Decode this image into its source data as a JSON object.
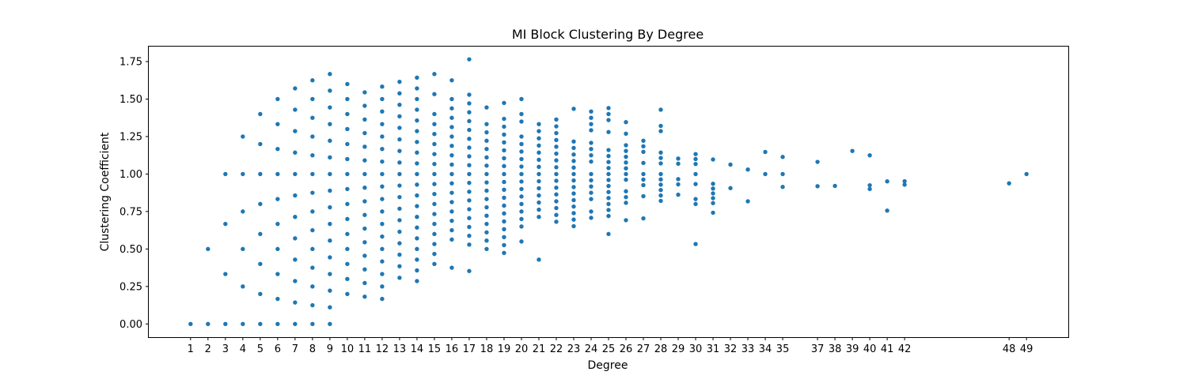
{
  "chart_data": {
    "type": "scatter",
    "title": "MI Block Clustering By Degree",
    "xlabel": "Degree",
    "ylabel": "Clustering Coefficient",
    "xlim": [
      -1.4,
      51.4
    ],
    "ylim": [
      -0.088,
      1.85
    ],
    "x_ticks": [
      1,
      2,
      3,
      4,
      5,
      6,
      7,
      8,
      9,
      10,
      11,
      12,
      13,
      14,
      15,
      16,
      17,
      18,
      19,
      20,
      21,
      22,
      23,
      24,
      25,
      26,
      27,
      28,
      29,
      30,
      31,
      32,
      33,
      34,
      35,
      37,
      38,
      39,
      40,
      41,
      42,
      48,
      49
    ],
    "y_ticks": [
      "0.00",
      "0.25",
      "0.50",
      "0.75",
      "1.00",
      "1.25",
      "1.50",
      "1.75"
    ],
    "grid": false,
    "legend": "none",
    "marker_color": "#1f77b4",
    "points": [
      {
        "x": 1,
        "y": [
          0.0
        ]
      },
      {
        "x": 2,
        "y": [
          0.0,
          0.5
        ]
      },
      {
        "x": 3,
        "y": [
          0.0,
          0.333,
          0.667,
          1.0
        ]
      },
      {
        "x": 4,
        "y": [
          0.0,
          0.25,
          0.5,
          0.75,
          1.0,
          1.25
        ]
      },
      {
        "x": 5,
        "y": [
          0.0,
          0.2,
          0.4,
          0.6,
          0.8,
          1.0,
          1.2,
          1.4
        ]
      },
      {
        "x": 6,
        "y": [
          0.0,
          0.167,
          0.333,
          0.5,
          0.667,
          0.833,
          1.0,
          1.167,
          1.333,
          1.5
        ]
      },
      {
        "x": 7,
        "y": [
          0.0,
          0.143,
          0.286,
          0.429,
          0.571,
          0.714,
          0.857,
          1.0,
          1.143,
          1.286,
          1.429,
          1.571
        ]
      },
      {
        "x": 8,
        "y": [
          0.0,
          0.125,
          0.25,
          0.375,
          0.5,
          0.625,
          0.75,
          0.875,
          1.0,
          1.125,
          1.25,
          1.375,
          1.5,
          1.625
        ]
      },
      {
        "x": 9,
        "y": [
          0.0,
          0.111,
          0.222,
          0.333,
          0.444,
          0.556,
          0.667,
          0.778,
          0.889,
          1.0,
          1.111,
          1.222,
          1.333,
          1.444,
          1.556,
          1.667
        ]
      },
      {
        "x": 10,
        "y": [
          0.2,
          0.3,
          0.4,
          0.5,
          0.6,
          0.7,
          0.8,
          0.9,
          1.0,
          1.1,
          1.2,
          1.3,
          1.4,
          1.5,
          1.6
        ]
      },
      {
        "x": 11,
        "y": [
          0.182,
          0.273,
          0.364,
          0.455,
          0.545,
          0.636,
          0.727,
          0.818,
          0.909,
          1.0,
          1.091,
          1.182,
          1.273,
          1.364,
          1.455,
          1.545
        ]
      },
      {
        "x": 12,
        "y": [
          0.167,
          0.25,
          0.333,
          0.417,
          0.5,
          0.583,
          0.667,
          0.75,
          0.833,
          0.917,
          1.0,
          1.083,
          1.167,
          1.25,
          1.333,
          1.417,
          1.5,
          1.583
        ]
      },
      {
        "x": 13,
        "y": [
          0.308,
          0.385,
          0.462,
          0.538,
          0.615,
          0.692,
          0.769,
          0.846,
          0.923,
          1.0,
          1.077,
          1.154,
          1.231,
          1.308,
          1.385,
          1.462,
          1.538,
          1.615
        ]
      },
      {
        "x": 14,
        "y": [
          0.286,
          0.357,
          0.429,
          0.5,
          0.571,
          0.643,
          0.714,
          0.786,
          0.857,
          0.929,
          1.0,
          1.071,
          1.143,
          1.214,
          1.286,
          1.357,
          1.429,
          1.5,
          1.571,
          1.643
        ]
      },
      {
        "x": 15,
        "y": [
          0.4,
          0.467,
          0.533,
          0.6,
          0.667,
          0.733,
          0.8,
          0.867,
          0.933,
          1.0,
          1.067,
          1.133,
          1.2,
          1.267,
          1.333,
          1.4,
          1.533,
          1.667
        ]
      },
      {
        "x": 16,
        "y": [
          0.375,
          0.563,
          0.625,
          0.688,
          0.75,
          0.813,
          0.875,
          0.938,
          1.0,
          1.063,
          1.125,
          1.188,
          1.25,
          1.313,
          1.375,
          1.438,
          1.5,
          1.625
        ]
      },
      {
        "x": 17,
        "y": [
          0.353,
          0.529,
          0.588,
          0.647,
          0.706,
          0.765,
          0.824,
          0.882,
          0.941,
          1.0,
          1.059,
          1.118,
          1.176,
          1.235,
          1.294,
          1.353,
          1.412,
          1.471,
          1.529,
          1.765
        ]
      },
      {
        "x": 18,
        "y": [
          0.5,
          0.556,
          0.611,
          0.667,
          0.722,
          0.778,
          0.833,
          0.889,
          0.944,
          1.0,
          1.056,
          1.111,
          1.167,
          1.222,
          1.278,
          1.333,
          1.444
        ]
      },
      {
        "x": 19,
        "y": [
          0.474,
          0.526,
          0.579,
          0.632,
          0.684,
          0.737,
          0.789,
          0.842,
          0.895,
          0.947,
          1.0,
          1.053,
          1.105,
          1.158,
          1.211,
          1.263,
          1.316,
          1.368,
          1.474
        ]
      },
      {
        "x": 20,
        "y": [
          0.55,
          0.65,
          0.7,
          0.75,
          0.8,
          0.85,
          0.9,
          0.95,
          1.0,
          1.05,
          1.1,
          1.15,
          1.2,
          1.25,
          1.35,
          1.4,
          1.5
        ]
      },
      {
        "x": 21,
        "y": [
          0.429,
          0.714,
          0.762,
          0.81,
          0.857,
          0.905,
          0.952,
          1.0,
          1.048,
          1.095,
          1.143,
          1.19,
          1.238,
          1.286,
          1.333
        ]
      },
      {
        "x": 22,
        "y": [
          0.682,
          0.727,
          0.773,
          0.818,
          0.864,
          0.909,
          0.955,
          1.0,
          1.045,
          1.091,
          1.136,
          1.182,
          1.227,
          1.273,
          1.318,
          1.364
        ]
      },
      {
        "x": 23,
        "y": [
          0.652,
          0.696,
          0.739,
          0.783,
          0.826,
          0.87,
          0.913,
          0.957,
          1.0,
          1.043,
          1.087,
          1.13,
          1.174,
          1.217,
          1.435
        ]
      },
      {
        "x": 24,
        "y": [
          0.708,
          0.75,
          0.833,
          0.875,
          0.917,
          0.958,
          1.0,
          1.083,
          1.125,
          1.167,
          1.208,
          1.292,
          1.333,
          1.375,
          1.417
        ]
      },
      {
        "x": 25,
        "y": [
          0.6,
          0.72,
          0.76,
          0.8,
          0.84,
          0.88,
          0.92,
          0.96,
          1.0,
          1.04,
          1.08,
          1.12,
          1.16,
          1.28,
          1.36,
          1.4,
          1.44
        ]
      },
      {
        "x": 26,
        "y": [
          0.692,
          0.808,
          0.846,
          0.885,
          0.962,
          1.0,
          1.038,
          1.077,
          1.115,
          1.154,
          1.192,
          1.269,
          1.346
        ]
      },
      {
        "x": 27,
        "y": [
          0.704,
          0.852,
          0.926,
          0.963,
          1.0,
          1.074,
          1.148,
          1.185,
          1.222
        ]
      },
      {
        "x": 28,
        "y": [
          0.821,
          0.857,
          0.893,
          0.929,
          0.964,
          1.0,
          1.071,
          1.107,
          1.143,
          1.286,
          1.321,
          1.429
        ]
      },
      {
        "x": 29,
        "y": [
          0.862,
          0.931,
          0.966,
          1.069,
          1.103
        ]
      },
      {
        "x": 30,
        "y": [
          0.533,
          0.8,
          0.833,
          0.933,
          1.0,
          1.067,
          1.1,
          1.133
        ]
      },
      {
        "x": 31,
        "y": [
          0.742,
          0.806,
          0.839,
          0.871,
          0.903,
          0.935,
          1.097
        ]
      },
      {
        "x": 32,
        "y": [
          0.906,
          1.063
        ]
      },
      {
        "x": 33,
        "y": [
          0.818,
          1.03
        ]
      },
      {
        "x": 34,
        "y": [
          1.0,
          1.147
        ]
      },
      {
        "x": 35,
        "y": [
          0.914,
          1.0,
          1.114
        ]
      },
      {
        "x": 37,
        "y": [
          0.919,
          1.081
        ]
      },
      {
        "x": 38,
        "y": [
          0.921
        ]
      },
      {
        "x": 39,
        "y": [
          1.154
        ]
      },
      {
        "x": 40,
        "y": [
          0.9,
          0.925,
          1.125
        ]
      },
      {
        "x": 41,
        "y": [
          0.756,
          0.951
        ]
      },
      {
        "x": 42,
        "y": [
          0.929,
          0.952
        ]
      },
      {
        "x": 48,
        "y": [
          0.938
        ]
      },
      {
        "x": 49,
        "y": [
          1.0
        ]
      }
    ]
  }
}
